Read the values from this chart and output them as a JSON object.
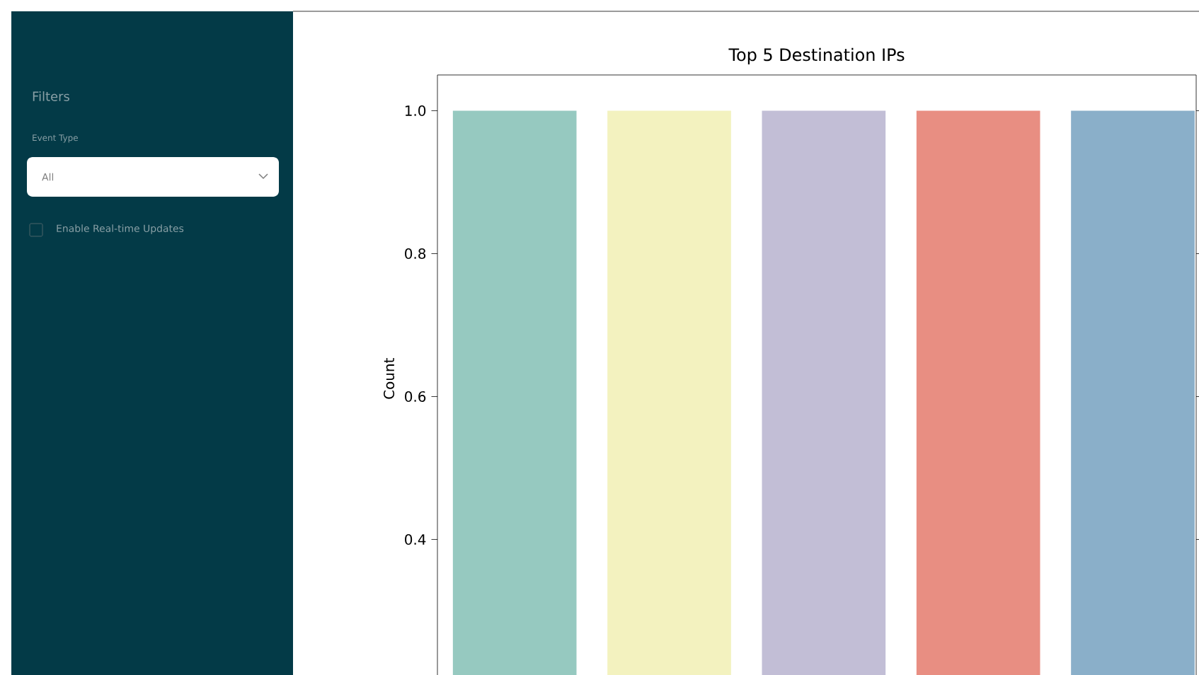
{
  "chart_data": [
    {
      "type": "other",
      "title": "Filters",
      "annotations": [
        "Event Type",
        "All",
        "Enable Real-time Updates"
      ]
    },
    {
      "type": "bar",
      "title": "Top 5 Destination IPs",
      "ylabel": "Count",
      "categories": [
        null,
        null,
        null,
        null,
        null
      ],
      "values": [
        1.0,
        1.0,
        1.0,
        1.0,
        1.0
      ],
      "colors": [
        "#96c9c0",
        "#f3f2bf",
        "#c2bed6",
        "#e88e82",
        "#8aafc9"
      ],
      "ylim": [
        0.2,
        1.05
      ],
      "yticks": [
        {
          "value": 0.4,
          "label": "0.4"
        },
        {
          "value": 0.6,
          "label": "0.6"
        },
        {
          "value": 0.8,
          "label": "0.8"
        },
        {
          "value": 1.0,
          "label": "1.0"
        }
      ],
      "grid": false
    }
  ]
}
